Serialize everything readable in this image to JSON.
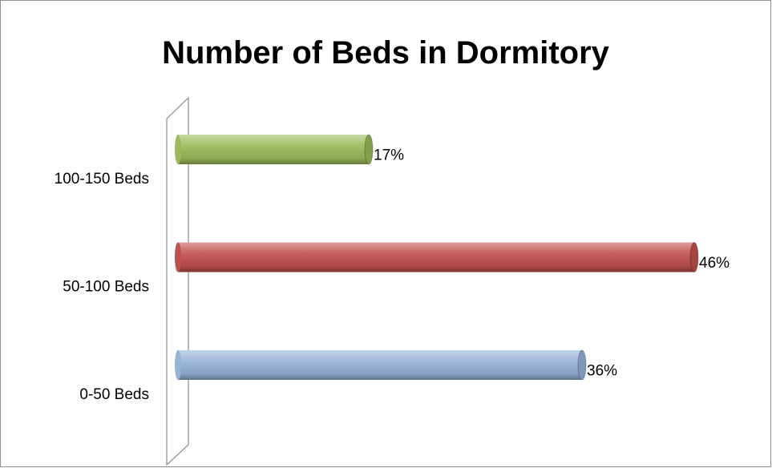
{
  "chart_data": {
    "type": "bar",
    "orientation": "horizontal",
    "title": "Number of Beds in Dormitory",
    "categories": [
      "100-150 Beds",
      "50-100 Beds",
      "0-50 Beds"
    ],
    "values": [
      17,
      46,
      36
    ],
    "value_labels": [
      "17%",
      "46%",
      "36%"
    ],
    "colors": [
      "#9bbb59",
      "#c0504d",
      "#95b3d7"
    ]
  }
}
